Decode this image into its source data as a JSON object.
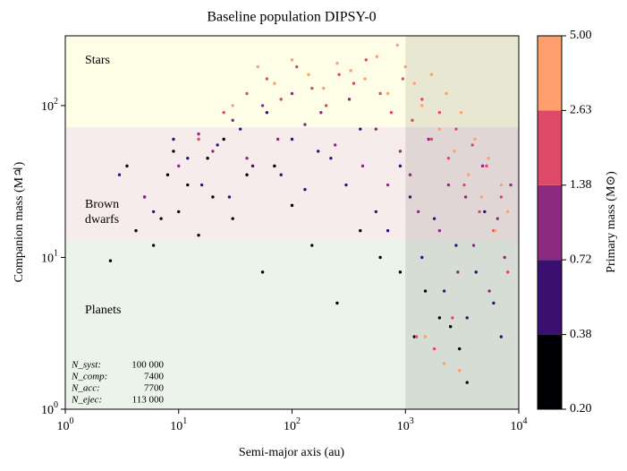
{
  "chart_data": {
    "type": "scatter",
    "title": "Baseline population DIPSY-0",
    "xlabel": "Semi-major axis (au)",
    "ylabel": "Companion mass (M♃)",
    "log_x": true,
    "log_y": true,
    "xlim": [
      1,
      10000
    ],
    "ylim": [
      1,
      288
    ],
    "xticks": [
      {
        "value": 1,
        "label": "10",
        "exponent": "0"
      },
      {
        "value": 10,
        "label": "10",
        "exponent": "1"
      },
      {
        "value": 100,
        "label": "10",
        "exponent": "2"
      },
      {
        "value": 1000,
        "label": "10",
        "exponent": "3"
      },
      {
        "value": 10000,
        "label": "10",
        "exponent": "4"
      }
    ],
    "yticks": [
      {
        "value": 1,
        "label": "10",
        "exponent": "0"
      },
      {
        "value": 10,
        "label": "10",
        "exponent": "1"
      },
      {
        "value": 100,
        "label": "10",
        "exponent": "2"
      }
    ],
    "regions": [
      {
        "lines": [
          "Stars"
        ],
        "ylim": [
          72,
          288
        ],
        "color": "#fefee7"
      },
      {
        "lines": [
          "Brown",
          "dwarfs"
        ],
        "ylim": [
          13,
          72
        ],
        "color": "#f7ecec"
      },
      {
        "lines": [
          "Planets"
        ],
        "ylim": [
          1,
          13
        ],
        "color": "#ebf3ea"
      }
    ],
    "shaded": {
      "xlim": [
        1000,
        10000
      ],
      "color": "rgba(0,0,0,0.09)"
    },
    "annotation": [
      [
        "N_syst:",
        "100 000"
      ],
      [
        "N_comp:",
        "7400"
      ],
      [
        "N_acc:",
        "7700"
      ],
      [
        "N_ejec:",
        "113 000"
      ]
    ],
    "colorbar": {
      "label": "Primary mass (M⊙)",
      "ticks": [
        {
          "value": 0.2,
          "label": "0.20"
        },
        0.38,
        0.72,
        1.38,
        2.63,
        {
          "value": 5,
          "label": "5.00"
        }
      ]
    },
    "series": [
      {
        "color": "#000004",
        "x": [
          2.5,
          3.5,
          4.2,
          5,
          6,
          7,
          8,
          9,
          10,
          12,
          15,
          18,
          20,
          25,
          30,
          40,
          55,
          70,
          100,
          150,
          250,
          400,
          600,
          900,
          1200,
          1500,
          2000,
          2500,
          3000,
          3500
        ],
        "values": [
          9.5,
          40,
          15,
          25,
          12,
          18,
          35,
          50,
          20,
          30,
          14,
          45,
          25,
          60,
          18,
          35,
          8,
          40,
          22,
          12,
          5,
          15,
          10,
          8,
          3,
          6,
          4,
          3.5,
          2.5,
          1.5
        ]
      },
      {
        "color": "#3b0f70",
        "x": [
          3,
          6,
          9,
          12,
          16,
          22,
          28,
          35,
          45,
          60,
          80,
          100,
          130,
          170,
          220,
          300,
          400,
          550,
          700,
          900,
          1100,
          1400,
          1800,
          2200,
          2800,
          3500,
          4200,
          5000,
          6000,
          7000
        ],
        "values": [
          35,
          20,
          60,
          45,
          30,
          55,
          25,
          70,
          40,
          90,
          35,
          60,
          28,
          50,
          45,
          30,
          70,
          20,
          15,
          40,
          25,
          10,
          18,
          6,
          12,
          4,
          8,
          20,
          5,
          3
        ]
      },
      {
        "color": "#8c2981",
        "x": [
          5,
          10,
          15,
          20,
          30,
          40,
          55,
          75,
          100,
          130,
          180,
          240,
          320,
          420,
          550,
          700,
          900,
          1100,
          1300,
          1600,
          2000,
          2400,
          2900,
          3400,
          4000,
          4800,
          5500,
          6500,
          7500,
          8500
        ],
        "values": [
          25,
          40,
          65,
          50,
          80,
          45,
          100,
          60,
          120,
          75,
          90,
          55,
          110,
          40,
          70,
          30,
          50,
          35,
          20,
          60,
          15,
          30,
          8,
          25,
          12,
          40,
          6,
          18,
          10,
          30
        ]
      },
      {
        "color": "#de4968",
        "x": [
          15,
          25,
          40,
          60,
          80,
          110,
          150,
          200,
          260,
          350,
          450,
          600,
          750,
          950,
          1150,
          1400,
          1700,
          2000,
          2400,
          2800,
          3300,
          3900,
          4500,
          5200,
          6000,
          7000,
          8000,
          2600,
          1800,
          1250
        ],
        "values": [
          60,
          90,
          120,
          150,
          110,
          180,
          130,
          100,
          160,
          140,
          200,
          120,
          90,
          150,
          80,
          110,
          60,
          90,
          45,
          70,
          30,
          55,
          20,
          40,
          15,
          25,
          8,
          4,
          2.5,
          3
        ]
      },
      {
        "color": "#fe9f6d",
        "x": [
          30,
          50,
          70,
          100,
          140,
          190,
          250,
          330,
          440,
          560,
          700,
          850,
          1000,
          1200,
          1400,
          1700,
          2000,
          2300,
          2700,
          3100,
          3600,
          4100,
          4700,
          5400,
          6200,
          7000,
          8000,
          1500,
          2200,
          3000
        ],
        "values": [
          100,
          180,
          140,
          200,
          160,
          130,
          190,
          170,
          150,
          210,
          120,
          250,
          180,
          140,
          100,
          160,
          70,
          120,
          50,
          90,
          35,
          60,
          25,
          45,
          15,
          30,
          20,
          3,
          2,
          1.8
        ]
      }
    ]
  }
}
